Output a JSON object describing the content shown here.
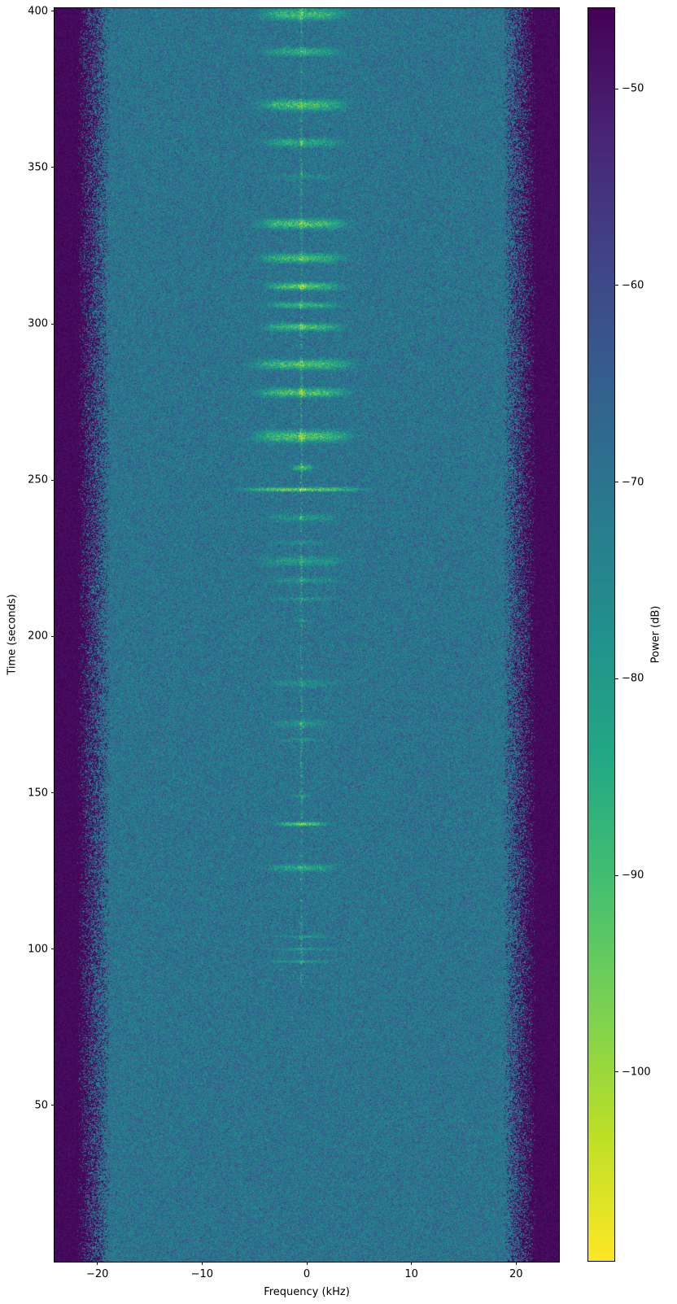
{
  "figure": {
    "background_color": "#ffffff",
    "text_color": "#000000"
  },
  "chart_data": {
    "type": "heatmap",
    "subtype": "spectrogram",
    "title": "",
    "xlabel": "Frequency (kHz)",
    "ylabel": "Time (seconds)",
    "colorbar_label": "Power (dB)",
    "x_range": [
      -24.1,
      24.1
    ],
    "y_range": [
      0,
      401
    ],
    "x_ticks": [
      -20,
      -10,
      0,
      10,
      20
    ],
    "y_ticks": [
      400,
      350,
      300,
      250,
      200,
      150,
      100,
      50
    ],
    "colorbar_ticks": [
      -50,
      -60,
      -70,
      -80,
      -90,
      -100
    ],
    "colorbar_range": [
      -109.6,
      -45.9
    ],
    "colormap": "viridis",
    "viridis_stops": [
      [
        0.0,
        "#440154"
      ],
      [
        0.1,
        "#482475"
      ],
      [
        0.2,
        "#404387"
      ],
      [
        0.3,
        "#345f8d"
      ],
      [
        0.4,
        "#29798e"
      ],
      [
        0.5,
        "#21918c"
      ],
      [
        0.6,
        "#22a884"
      ],
      [
        0.7,
        "#44bf70"
      ],
      [
        0.8,
        "#7ad151"
      ],
      [
        0.9,
        "#bddf26"
      ],
      [
        1.0,
        "#fde725"
      ]
    ],
    "grid": false,
    "legend": "none",
    "noise_floor_dB": {
      "mean": -85,
      "std": 4.5,
      "dark_speckle_prob": 0.05,
      "dark_speckle_drop": 7
    },
    "band_edge_start_kHz": 18.8,
    "band_edge_width_kHz": 3.1,
    "band_min_dB": -108,
    "carrier_freq_kHz": -0.5,
    "carrier_halfwidth_kHz": 0.12,
    "carrier_active_after_s": 88,
    "carrier_boost_dB": 16,
    "burst_center_freq_kHz": -0.4,
    "burst_amp_dB": 24,
    "bursts_note": "each burst = [time_center_s, half_duration_s, strength_0to1, freq_halfwidth_kHz, center_spike_strength]",
    "bursts": [
      [
        399,
        3.0,
        0.75,
        3.8,
        0.5
      ],
      [
        387,
        2.2,
        0.55,
        3.4,
        0.8
      ],
      [
        370,
        2.8,
        0.8,
        3.8,
        0.5
      ],
      [
        358,
        2.2,
        0.55,
        3.4,
        0.6
      ],
      [
        347,
        1.5,
        0.2,
        3.0,
        0.2
      ],
      [
        332,
        2.6,
        0.8,
        4.0,
        0.6
      ],
      [
        321,
        2.4,
        0.75,
        3.7,
        0.5
      ],
      [
        312,
        2.0,
        0.85,
        3.2,
        0.9
      ],
      [
        306,
        1.6,
        0.6,
        3.2,
        0.7
      ],
      [
        299,
        2.0,
        0.75,
        3.4,
        0.8
      ],
      [
        287,
        2.6,
        0.8,
        4.3,
        0.6
      ],
      [
        278,
        2.4,
        0.85,
        3.9,
        0.7
      ],
      [
        264,
        3.0,
        0.85,
        4.3,
        0.8
      ],
      [
        254,
        1.6,
        0.55,
        1.1,
        1.0
      ],
      [
        247,
        1.1,
        1.0,
        5.2,
        0.9
      ],
      [
        238,
        2.0,
        0.3,
        3.3,
        0.4
      ],
      [
        230,
        1.2,
        0.2,
        2.6,
        0.3
      ],
      [
        224,
        2.4,
        0.4,
        3.7,
        0.5
      ],
      [
        218,
        1.4,
        0.3,
        3.0,
        0.4
      ],
      [
        212,
        1.0,
        0.3,
        2.6,
        0.5
      ],
      [
        205,
        0.8,
        0.25,
        0.9,
        0.6
      ],
      [
        185,
        2.0,
        0.25,
        3.1,
        0.5
      ],
      [
        172,
        2.2,
        0.3,
        2.5,
        0.6
      ],
      [
        167,
        1.0,
        0.25,
        2.0,
        0.5
      ],
      [
        149,
        0.8,
        0.3,
        0.9,
        0.7
      ],
      [
        140,
        1.1,
        0.85,
        2.3,
        1.0
      ],
      [
        126,
        1.8,
        0.5,
        3.1,
        0.7
      ],
      [
        104,
        0.8,
        0.3,
        2.5,
        0.4
      ],
      [
        100,
        0.8,
        0.3,
        2.7,
        0.4
      ],
      [
        96,
        0.8,
        0.35,
        2.9,
        0.4
      ]
    ]
  }
}
